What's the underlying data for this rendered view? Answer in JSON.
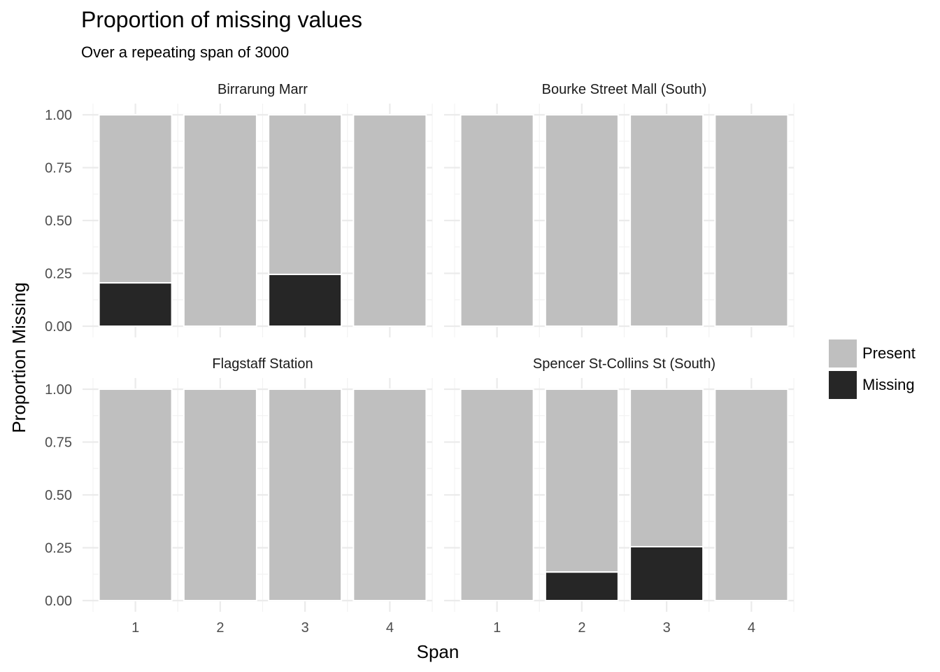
{
  "chart_data": {
    "type": "bar",
    "title": "Proportion of missing values",
    "subtitle": "Over a repeating span of 3000",
    "xlabel": "Span",
    "ylabel": "Proportion Missing",
    "ylim": [
      0,
      1
    ],
    "y_ticks": [
      "0.00",
      "0.25",
      "0.50",
      "0.75",
      "1.00"
    ],
    "categories": [
      "1",
      "2",
      "3",
      "4"
    ],
    "stacked": true,
    "grid": true,
    "legend": {
      "position": "right",
      "entries": [
        {
          "name": "Present",
          "color": "#bfbfbf"
        },
        {
          "name": "Missing",
          "color": "#262626"
        }
      ]
    },
    "facets": [
      {
        "name": "Birrarung Marr",
        "missing": [
          0.205,
          0,
          0.245,
          0
        ]
      },
      {
        "name": "Bourke Street Mall (South)",
        "missing": [
          0,
          0,
          0,
          0
        ]
      },
      {
        "name": "Flagstaff Station",
        "missing": [
          0,
          0,
          0,
          0
        ]
      },
      {
        "name": "Spencer St-Collins St (South)",
        "missing": [
          0,
          0.135,
          0.255,
          0
        ]
      }
    ]
  }
}
